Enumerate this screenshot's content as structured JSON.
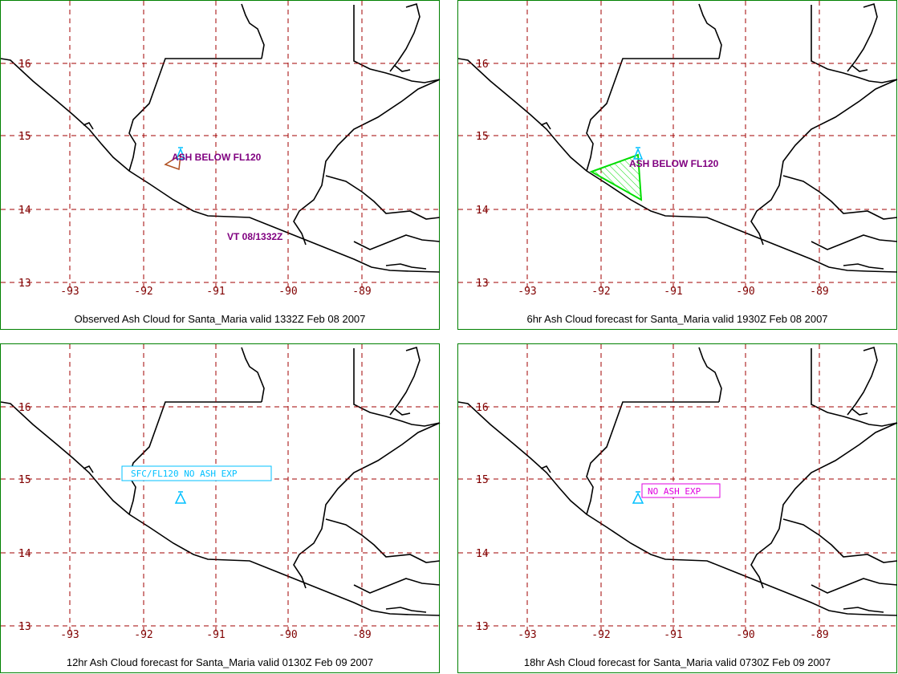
{
  "colors": {
    "grid": "#a00000",
    "coast": "#000000",
    "frame": "#008000",
    "volcano": "#00c0ff",
    "observed_cloud": "#b05020",
    "forecast_cloud": "#00dd00",
    "label_purple": "#800080",
    "label_cyan": "#00c0ff",
    "label_magenta": "#e000e0"
  },
  "axes": {
    "lat_labels": [
      "16",
      "15",
      "14",
      "13"
    ],
    "lon_labels": [
      "-93",
      "-92",
      "-91",
      "-90",
      "-89"
    ]
  },
  "volcano": {
    "name": "Santa_Maria",
    "lat": 14.76,
    "lon": -91.55,
    "icon": "volcano-triangle-icon"
  },
  "panels": [
    {
      "caption": "Observed Ash Cloud for Santa_Maria valid 1332Z Feb 08 2007",
      "label": "ASH BELOW FL120",
      "valid_time": "VT 08/1332Z",
      "cloud": [
        [
          -91.75,
          14.62
        ],
        [
          -91.55,
          14.74
        ],
        [
          -91.58,
          14.55
        ]
      ]
    },
    {
      "caption": "6hr Ash Cloud forecast for Santa_Maria valid 1930Z Feb 08 2007",
      "label": "ASH BELOW FL120",
      "cloud": [
        [
          -92.18,
          14.53
        ],
        [
          -91.55,
          14.74
        ],
        [
          -91.42,
          14.14
        ]
      ]
    },
    {
      "caption": "12hr Ash Cloud forecast for Santa_Maria valid 0130Z Feb 09 2007",
      "label": "SFC/FL120 NO ASH EXP"
    },
    {
      "caption": "18hr Ash Cloud forecast for Santa_Maria valid 0730Z Feb 09 2007",
      "label": "NO ASH EXP"
    }
  ]
}
